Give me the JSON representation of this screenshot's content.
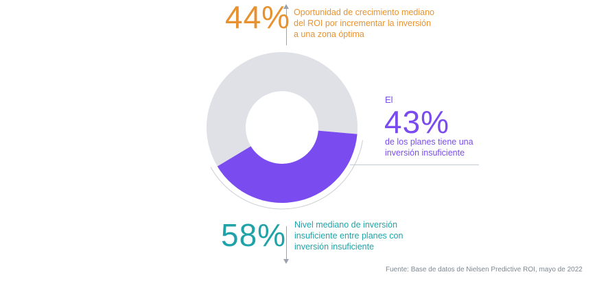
{
  "colors": {
    "orange": "#e8922f",
    "purple": "#7a4cf0",
    "teal": "#1fa3a8",
    "grey_segment": "#dfe1e6",
    "outline": "#c9ced4"
  },
  "stats": {
    "top": {
      "percent": "44%",
      "description": "Oportunidad de crecimiento mediano del ROI por incrementar la inversión a una zona óptima"
    },
    "right": {
      "prefix": "El",
      "percent": "43%",
      "description": "de los planes tiene una inversión insuficiente"
    },
    "bottom": {
      "percent": "58%",
      "description": "Nivel mediano de inversión insuficiente entre planes con inversión insuficiente"
    }
  },
  "source": "Fuente: Base de datos de Nielsen Predictive ROI, mayo de 2022",
  "chart_data": {
    "type": "pie",
    "categories": [
      "",
      ""
    ],
    "values": [
      57,
      43
    ],
    "colors": [
      "#dfe1e6",
      "#7a4cf0"
    ]
  }
}
